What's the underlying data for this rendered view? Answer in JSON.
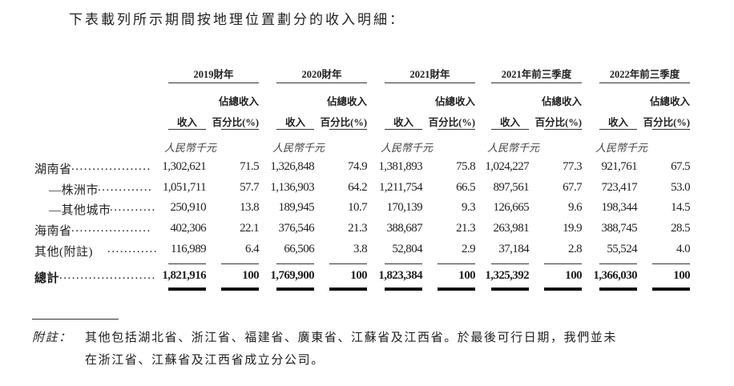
{
  "intro": "下表載列所示期間按地理位置劃分的收入明細：",
  "periods": [
    "2019財年",
    "2020財年",
    "2021財年",
    "2021年前三季度",
    "2022年前三季度"
  ],
  "col_headers": {
    "revenue": "收入",
    "pct_line1": "佔總收入",
    "pct_line2": "百分比(%)",
    "unit": "人民幣千元"
  },
  "rows": [
    {
      "label": "湖南省",
      "dots": "...................",
      "values": [
        [
          "1,302,621",
          "71.5"
        ],
        [
          "1,326,848",
          "74.9"
        ],
        [
          "1,381,893",
          "75.8"
        ],
        [
          "1,024,227",
          "77.3"
        ],
        [
          "921,761",
          "67.5"
        ]
      ]
    },
    {
      "label": "—株洲市",
      "dots": ".............",
      "values": [
        [
          "1,051,711",
          "57.7"
        ],
        [
          "1,136,903",
          "64.2"
        ],
        [
          "1,211,754",
          "66.5"
        ],
        [
          "897,561",
          "67.7"
        ],
        [
          "723,417",
          "53.0"
        ]
      ]
    },
    {
      "label": "—其他城市",
      "dots": "...........",
      "values": [
        [
          "250,910",
          "13.8"
        ],
        [
          "189,945",
          "10.7"
        ],
        [
          "170,139",
          "9.3"
        ],
        [
          "126,665",
          "9.6"
        ],
        [
          "198,344",
          "14.5"
        ]
      ]
    },
    {
      "label": "海南省",
      "dots": "...................",
      "values": [
        [
          "402,306",
          "22.1"
        ],
        [
          "376,546",
          "21.3"
        ],
        [
          "388,687",
          "21.3"
        ],
        [
          "263,981",
          "19.9"
        ],
        [
          "388,745",
          "28.5"
        ]
      ]
    },
    {
      "label": "其他(附註)",
      "dots": "..............",
      "values": [
        [
          "116,989",
          "6.4"
        ],
        [
          "66,506",
          "3.8"
        ],
        [
          "52,804",
          "2.9"
        ],
        [
          "37,184",
          "2.8"
        ],
        [
          "55,524",
          "4.0"
        ]
      ]
    },
    {
      "label": "總計",
      "dots": ".......................",
      "values": [
        [
          "1,821,916",
          "100"
        ],
        [
          "1,769,900",
          "100"
        ],
        [
          "1,823,384",
          "100"
        ],
        [
          "1,325,392",
          "100"
        ],
        [
          "1,366,030",
          "100"
        ]
      ]
    }
  ],
  "note": {
    "label": "附註：",
    "line1": "其他包括湖北省、浙江省、福建省、廣東省、江蘇省及江西省。於最後可行日期，我們並未",
    "line2": "在浙江省、江蘇省及江西省成立分公司。"
  }
}
